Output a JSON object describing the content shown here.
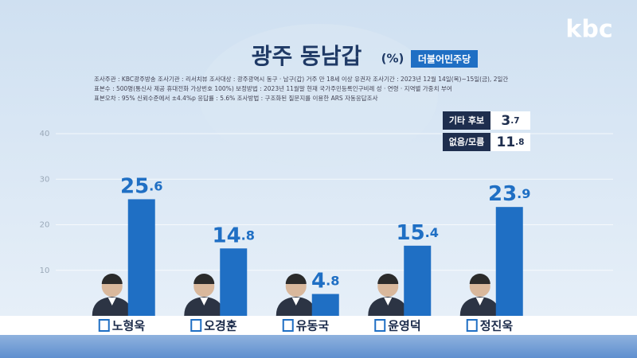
{
  "logo": "kbc",
  "chart_data": {
    "type": "bar",
    "title": "광주 동남갑",
    "unit": "(%)",
    "party": "더불어민주당",
    "notes": [
      "조사주관 : KBC광주방송   조사기관 : 리서치뷰   조사대상 : 광주광역시 동구 · 남구(갑) 거주 만 18세 이상 유권자   조사기간 : 2023년 12월 14일(목)~15일(금), 2일간",
      "표본수 : 500명(통신사 제공 휴대전화 가상번호 100%)   보정방법 : 2023년 11월말 현재 국가주민등록인구비례 성 · 연령 · 지역별 가중치 부여",
      "표본오차 : 95% 신뢰수준에서 ±4.4%p   응답률 : 5.6%   조사방법 : 구조화된 질문지를 이용한 ARS 자동응답조사"
    ],
    "categories": [
      "노형욱",
      "오경훈",
      "유동국",
      "윤영덕",
      "정진욱"
    ],
    "values": [
      25.6,
      14.8,
      4.8,
      15.4,
      23.9
    ],
    "color": "#1f6fc4",
    "ylim": [
      0,
      40
    ],
    "yticks": [
      10,
      20,
      30,
      40
    ],
    "grid": true,
    "others": [
      {
        "label": "기타 후보",
        "value": 3.7
      },
      {
        "label": "없음/모름",
        "value": 11.8
      }
    ]
  }
}
